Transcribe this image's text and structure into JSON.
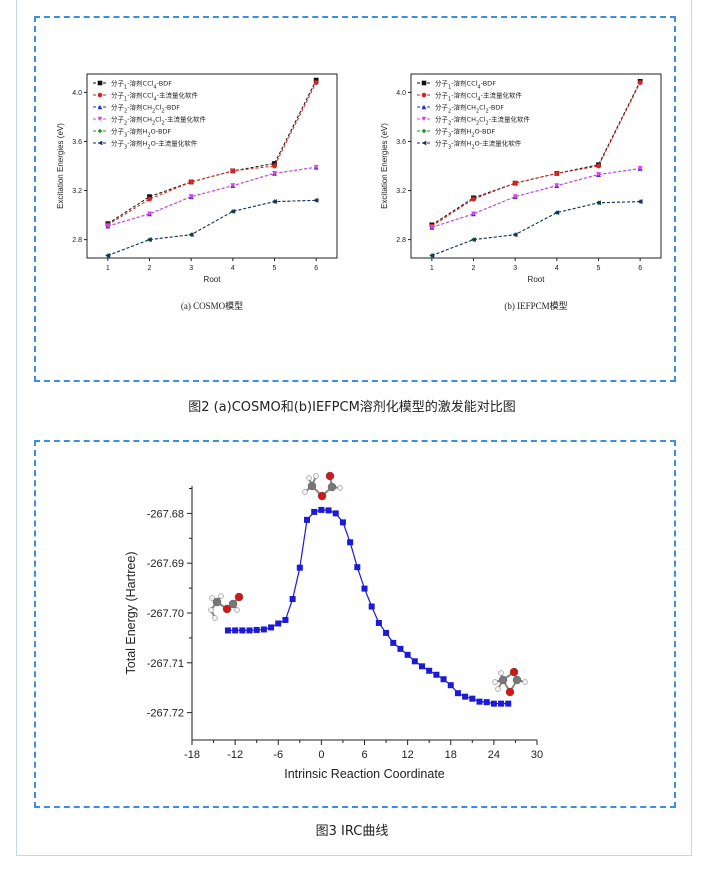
{
  "captions": {
    "fig2": "图2 (a)COSMO和(b)IEFPCM溶剂化模型的激发能对比图",
    "fig3": "图3 IRC曲线"
  },
  "colors": {
    "frame_dash": "#3b8fe0",
    "s_black": "#111111",
    "s_red": "#dd2222",
    "s_blue": "#2a2ad8",
    "s_magenta": "#e040e0",
    "s_green": "#1a9a1a",
    "s_navy": "#1a2a6a",
    "irc": "#1a1ad8"
  },
  "chart_data": [
    {
      "type": "line",
      "subtitle": "(a) COSMO模型",
      "xlabel": "Root",
      "ylabel": "Excitation Energies (eV)",
      "x": [
        1,
        2,
        3,
        4,
        5,
        6
      ],
      "xlim": [
        0.5,
        6.5
      ],
      "ylim": [
        2.65,
        4.15
      ],
      "yticks": [
        2.8,
        3.2,
        3.6,
        4.0
      ],
      "legend_position": "top-left",
      "series": [
        {
          "name": "分子1-溶剂CCl4-BDF",
          "color_key": "s_black",
          "marker": "square",
          "values": [
            2.93,
            3.15,
            3.27,
            3.36,
            3.42,
            4.1
          ]
        },
        {
          "name": "分子1-溶剂CCl4-主流量化软件",
          "color_key": "s_red",
          "marker": "circle",
          "values": [
            2.92,
            3.13,
            3.27,
            3.36,
            3.4,
            4.08
          ]
        },
        {
          "name": "分子2-溶剂CH2Cl2-BDF",
          "color_key": "s_blue",
          "marker": "triangle-up",
          "values": [
            2.91,
            3.01,
            3.15,
            3.24,
            3.34,
            3.39
          ]
        },
        {
          "name": "分子2-溶剂CH2Cl2-主流量化软件",
          "color_key": "s_magenta",
          "marker": "triangle-down",
          "values": [
            2.91,
            3.01,
            3.15,
            3.24,
            3.34,
            3.39
          ]
        },
        {
          "name": "分子3-溶剂H2O-BDF",
          "color_key": "s_green",
          "marker": "diamond",
          "values": [
            2.67,
            2.8,
            2.84,
            3.03,
            3.11,
            3.12
          ]
        },
        {
          "name": "分子3-溶剂H2O-主流量化软件",
          "color_key": "s_navy",
          "marker": "triangle-left",
          "values": [
            2.67,
            2.8,
            2.84,
            3.03,
            3.11,
            3.12
          ]
        }
      ]
    },
    {
      "type": "line",
      "subtitle": "(b) IEFPCM模型",
      "xlabel": "Root",
      "ylabel": "Excitation Energies (eV)",
      "x": [
        1,
        2,
        3,
        4,
        5,
        6
      ],
      "xlim": [
        0.5,
        6.5
      ],
      "ylim": [
        2.65,
        4.15
      ],
      "yticks": [
        2.8,
        3.2,
        3.6,
        4.0
      ],
      "legend_position": "top-left",
      "series": [
        {
          "name": "分子1-溶剂CCl4-BDF",
          "color_key": "s_black",
          "marker": "square",
          "values": [
            2.92,
            3.14,
            3.26,
            3.34,
            3.41,
            4.09
          ]
        },
        {
          "name": "分子1-溶剂CCl4-主流量化软件",
          "color_key": "s_red",
          "marker": "circle",
          "values": [
            2.91,
            3.13,
            3.26,
            3.34,
            3.4,
            4.08
          ]
        },
        {
          "name": "分子2-溶剂CH2Cl2-BDF",
          "color_key": "s_blue",
          "marker": "triangle-up",
          "values": [
            2.9,
            3.01,
            3.15,
            3.24,
            3.33,
            3.38
          ]
        },
        {
          "name": "分子2-溶剂CH2Cl2-主流量化软件",
          "color_key": "s_magenta",
          "marker": "triangle-down",
          "values": [
            2.9,
            3.01,
            3.15,
            3.24,
            3.33,
            3.38
          ]
        },
        {
          "name": "分子3-溶剂H2O-BDF",
          "color_key": "s_green",
          "marker": "diamond",
          "values": [
            2.67,
            2.8,
            2.84,
            3.02,
            3.1,
            3.11
          ]
        },
        {
          "name": "分子3-溶剂H2O-主流量化软件",
          "color_key": "s_navy",
          "marker": "triangle-left",
          "values": [
            2.67,
            2.8,
            2.84,
            3.02,
            3.1,
            3.11
          ]
        }
      ]
    },
    {
      "type": "line",
      "xlabel": "Intrinsic Reaction Coordinate",
      "ylabel": "Total Energy (Hartree)",
      "xlim": [
        -18,
        30
      ],
      "ylim": [
        -267.7255,
        -267.6745
      ],
      "xticks": [
        -18,
        -12,
        -6,
        0,
        6,
        12,
        18,
        24,
        30
      ],
      "yticks": [
        -267.68,
        -267.69,
        -267.7,
        -267.71,
        -267.72
      ],
      "ytick_labels": [
        "-267.68",
        "-267.69",
        "-267.70",
        "-267.71",
        "-267.72"
      ],
      "series": [
        {
          "color_key": "irc",
          "marker": "square",
          "x": [
            -13,
            -12,
            -11,
            -10,
            -9,
            -8,
            -7,
            -6,
            -5,
            -4,
            -3,
            -2,
            -1,
            0,
            1,
            2,
            3,
            4,
            5,
            6,
            7,
            8,
            9,
            10,
            11,
            12,
            13,
            14,
            15,
            16,
            17,
            18,
            19,
            20,
            21,
            22,
            23,
            24,
            25,
            26
          ],
          "y": [
            -267.7035,
            -267.7035,
            -267.7035,
            -267.7035,
            -267.7034,
            -267.7033,
            -267.7029,
            -267.7021,
            -267.7014,
            -267.6972,
            -267.6909,
            -267.6813,
            -267.6797,
            -267.6793,
            -267.6794,
            -267.68,
            -267.6818,
            -267.6858,
            -267.6908,
            -267.6951,
            -267.6987,
            -267.702,
            -267.704,
            -267.706,
            -267.7072,
            -267.7084,
            -267.7097,
            -267.7107,
            -267.7116,
            -267.7124,
            -267.7133,
            -267.7145,
            -267.7161,
            -267.7168,
            -267.7172,
            -267.7178,
            -267.7179,
            -267.7182,
            -267.7182,
            -267.7182
          ]
        }
      ]
    }
  ]
}
